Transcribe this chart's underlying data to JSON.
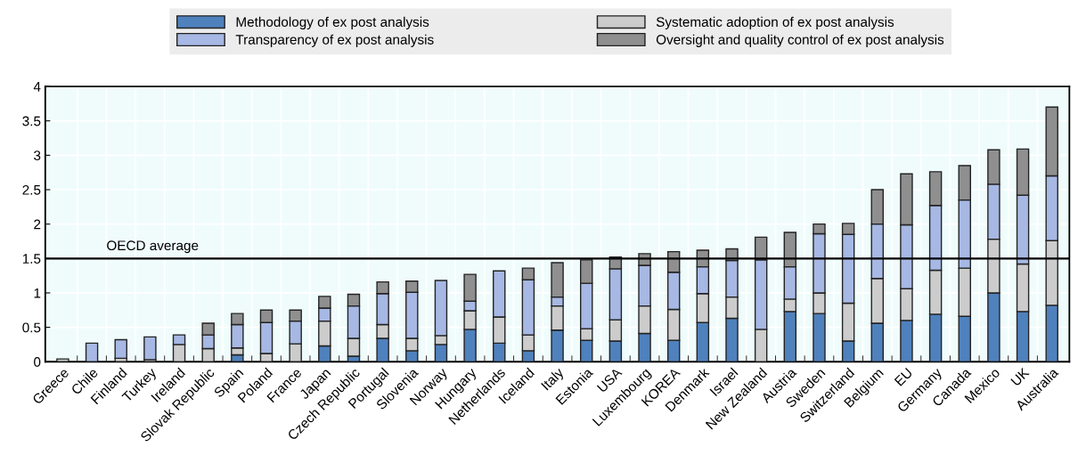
{
  "chart_data": {
    "type": "bar",
    "stacked": true,
    "categories": [
      "Greece",
      "Chile",
      "Finland",
      "Turkey",
      "Ireland",
      "Slovak Republic",
      "Spain",
      "Poland",
      "France",
      "Japan",
      "Czech Republic",
      "Portugal",
      "Slovenia",
      "Norway",
      "Hungary",
      "Netherlands",
      "Iceland",
      "Italy",
      "Estonia",
      "USA",
      "Luxembourg",
      "KOREA",
      "Denmark",
      "Israel",
      "New Zealand",
      "Austria",
      "Sweden",
      "Switzerland",
      "Belgium",
      "EU",
      "Germany",
      "Canada",
      "Mexico",
      "UK",
      "Australia"
    ],
    "series": [
      {
        "name": "Methodology of ex post analysis",
        "color": "#4f81bd",
        "values": [
          0,
          0,
          0,
          0,
          0,
          0,
          0.1,
          0,
          0,
          0.23,
          0.08,
          0.34,
          0.16,
          0.25,
          0.47,
          0.27,
          0.16,
          0.46,
          0.31,
          0.3,
          0.41,
          0.31,
          0.57,
          0.63,
          0,
          0.73,
          0.7,
          0.3,
          0.56,
          0.6,
          0.69,
          0.66,
          1.0,
          0.73,
          0.82
        ]
      },
      {
        "name": "Systematic adoption of ex post analysis",
        "color": "#cccccc",
        "values": [
          0.04,
          0,
          0.05,
          0.03,
          0.25,
          0.19,
          0.1,
          0.12,
          0.26,
          0.36,
          0.26,
          0.2,
          0.18,
          0.13,
          0.27,
          0.38,
          0.23,
          0.35,
          0.17,
          0.31,
          0.4,
          0.45,
          0.42,
          0.31,
          0.47,
          0.18,
          0.3,
          0.55,
          0.65,
          0.46,
          0.64,
          0.7,
          0.78,
          0.69,
          0.94
        ]
      },
      {
        "name": "Transparency of ex post analysis",
        "color": "#a6b8e3",
        "values": [
          0,
          0.27,
          0.27,
          0.33,
          0.14,
          0.2,
          0.34,
          0.45,
          0.33,
          0.19,
          0.47,
          0.45,
          0.67,
          0.8,
          0.14,
          0.67,
          0.8,
          0.13,
          0.66,
          0.74,
          0.59,
          0.54,
          0.39,
          0.53,
          1.01,
          0.47,
          0.86,
          1.0,
          0.79,
          0.93,
          0.94,
          0.99,
          0.8,
          1.0,
          0.94
        ]
      },
      {
        "name": "Oversight and quality control of ex post analysis",
        "color": "#8f8f8f",
        "values": [
          0,
          0,
          0,
          0,
          0,
          0.17,
          0.16,
          0.18,
          0.16,
          0.17,
          0.17,
          0.17,
          0.16,
          0,
          0.39,
          0,
          0.17,
          0.5,
          0.34,
          0.17,
          0.17,
          0.3,
          0.24,
          0.17,
          0.33,
          0.5,
          0.14,
          0.16,
          0.5,
          0.74,
          0.49,
          0.5,
          0.5,
          0.67,
          1.0
        ]
      }
    ],
    "ylim": [
      0,
      4
    ],
    "yticks": [
      0,
      0.5,
      1,
      1.5,
      2,
      2.5,
      3,
      3.5,
      4
    ],
    "grid": true,
    "legend": "top",
    "ref_lines": [
      {
        "axis": "y",
        "value": 1.5,
        "label": "OECD average",
        "color": "#000000"
      }
    ]
  }
}
